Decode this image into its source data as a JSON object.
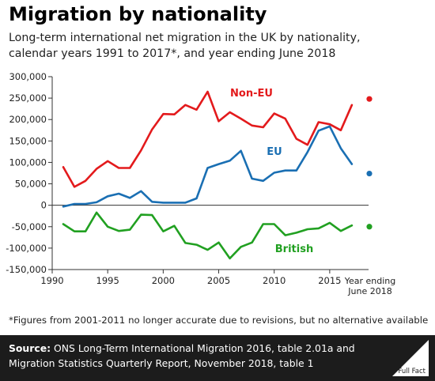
{
  "title": "Migration by nationality",
  "subtitle": {
    "line1": "Long-term international net migration in the UK by nationality,",
    "line2": "calendar years 1991 to 2017*, and year ending June 2018"
  },
  "footnote": "*Figures from 2001-2011 no longer accurate due to revisions, but no alternative available",
  "source": {
    "label": "Source:",
    "text": " ONS Long-Term International Migration 2016, table 2.01a and Migration Statistics Quarterly Report, November 2018, table 1"
  },
  "logo": {
    "text": "Full Fact"
  },
  "colors": {
    "non_eu": "#e31a1c",
    "eu": "#1a6fb3",
    "british": "#21a021",
    "axis": "#333333"
  },
  "chart_data": {
    "type": "line",
    "x": [
      1991,
      1992,
      1993,
      1994,
      1995,
      1996,
      1997,
      1998,
      1999,
      2000,
      2001,
      2002,
      2003,
      2004,
      2005,
      2006,
      2007,
      2008,
      2009,
      2010,
      2011,
      2012,
      2013,
      2014,
      2015,
      2016,
      2017
    ],
    "series": [
      {
        "name": "Non-EU",
        "color": "#e31a1c",
        "values": [
          89000,
          43000,
          57000,
          85000,
          103000,
          87000,
          87000,
          128000,
          177000,
          213000,
          212000,
          234000,
          223000,
          265000,
          196000,
          217000,
          202000,
          186000,
          182000,
          214000,
          202000,
          155000,
          141000,
          194000,
          189000,
          175000,
          234000
        ],
        "latest": {
          "label": "Year ending June 2018",
          "value": 248000
        }
      },
      {
        "name": "EU",
        "color": "#1a6fb3",
        "values": [
          -3000,
          3000,
          3000,
          7000,
          21000,
          27000,
          17000,
          33000,
          8000,
          6000,
          6000,
          6000,
          16000,
          87000,
          96000,
          104000,
          127000,
          62000,
          57000,
          76000,
          81000,
          81000,
          124000,
          174000,
          184000,
          133000,
          96000
        ],
        "latest": {
          "label": "Year ending June 2018",
          "value": 74000
        }
      },
      {
        "name": "British",
        "color": "#21a021",
        "values": [
          -44000,
          -61000,
          -61000,
          -17000,
          -50000,
          -60000,
          -57000,
          -22000,
          -23000,
          -61000,
          -48000,
          -88000,
          -92000,
          -104000,
          -87000,
          -124000,
          -97000,
          -87000,
          -44000,
          -44000,
          -70000,
          -64000,
          -56000,
          -54000,
          -41000,
          -60000,
          -47000
        ],
        "latest": {
          "label": "Year ending June 2018",
          "value": -50000
        }
      }
    ],
    "xlim": [
      1990,
      2018.5
    ],
    "ylim": [
      -150000,
      300000
    ],
    "x_ticks": [
      1990,
      1995,
      2000,
      2005,
      2010,
      2015
    ],
    "x_tick_labels": [
      "1990",
      "1995",
      "2000",
      "2005",
      "2010",
      "2015"
    ],
    "y_ticks": [
      300000,
      250000,
      200000,
      150000,
      100000,
      50000,
      0,
      -50000,
      -100000,
      -150000
    ],
    "y_tick_labels": [
      "300,000",
      "250,000",
      "200,000",
      "150,000",
      "100,000",
      "50,000",
      "0",
      "-50,000",
      "-100,000",
      "-150,000"
    ],
    "extra_x_label": {
      "line1": "Year ending",
      "line2": "June 2018"
    },
    "title": "",
    "xlabel": "",
    "ylabel": "",
    "grid": false,
    "legend": "inline labels"
  }
}
